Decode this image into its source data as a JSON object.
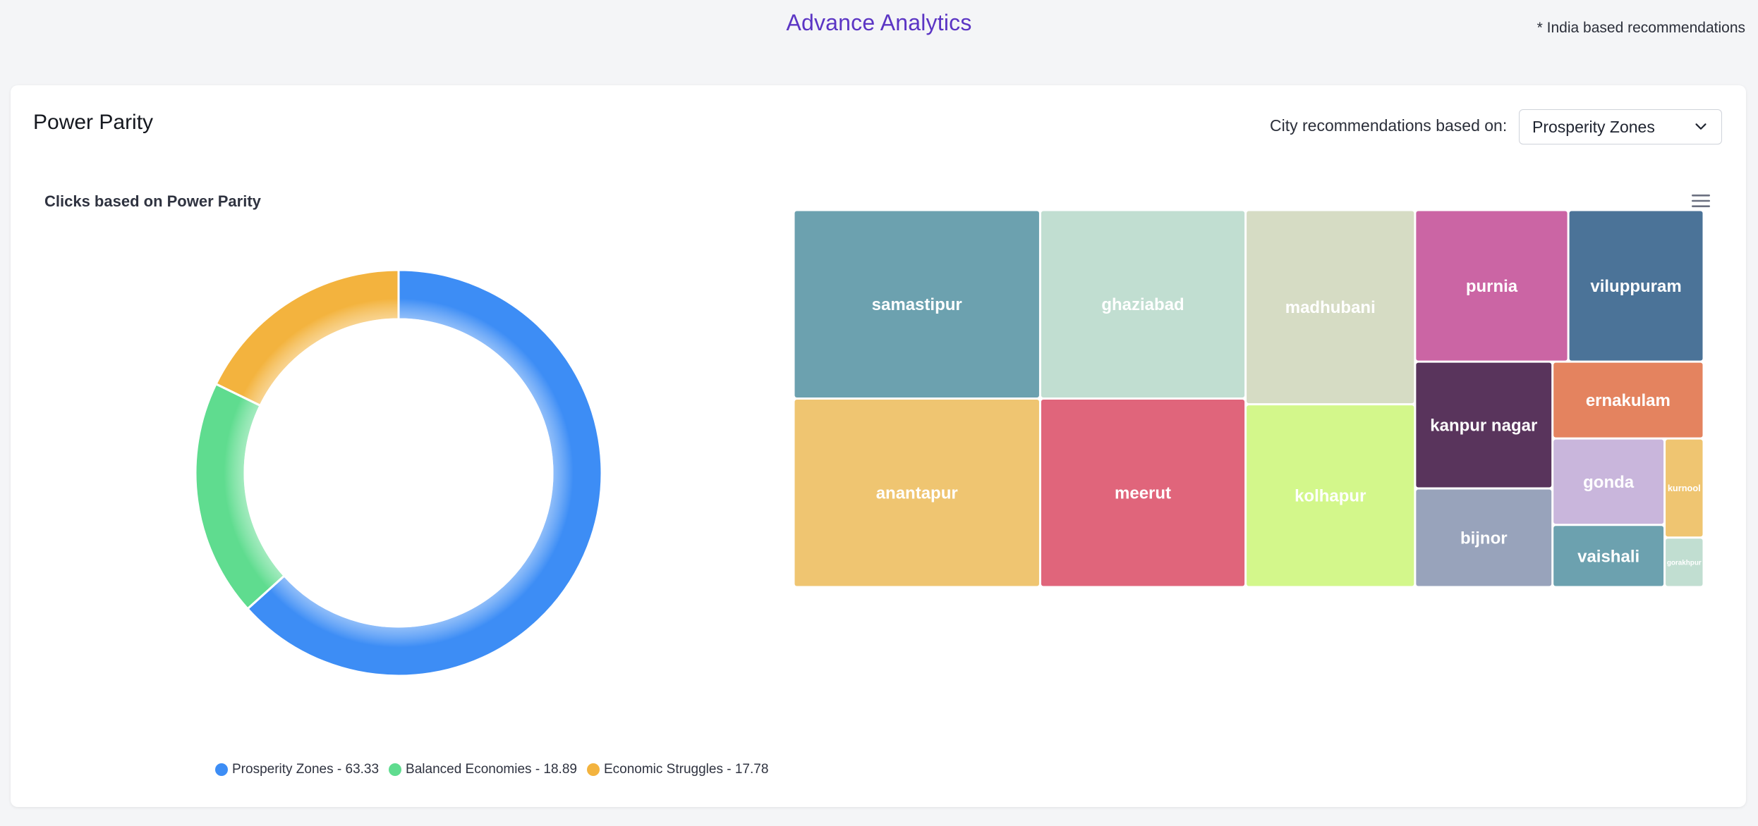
{
  "page": {
    "title": "Advance Analytics",
    "note": "* India based recommendations"
  },
  "card": {
    "title": "Power Parity",
    "recommendation_label": "City recommendations based on:",
    "recommendation_value": "Prosperity Zones"
  },
  "icons": {
    "dropdown": "chevron-down-icon",
    "menu": "hamburger-menu-icon"
  },
  "colors": {
    "accent": "#5b35c4"
  },
  "chart_data": [
    {
      "type": "pie",
      "variant": "donut",
      "title": "Clicks based on Power Parity",
      "legend_position": "bottom",
      "series": [
        {
          "name": "Prosperity Zones",
          "value": 63.33,
          "color": "#3d8df5",
          "legend_text": "Prosperity Zones - 63.33"
        },
        {
          "name": "Balanced Economies",
          "value": 18.89,
          "color": "#5fdc8f",
          "legend_text": "Balanced Economies - 18.89"
        },
        {
          "name": "Economic Struggles",
          "value": 17.78,
          "color": "#f3b33e",
          "legend_text": "Economic Struggles - 17.78"
        }
      ]
    },
    {
      "type": "treemap",
      "points": [
        {
          "name": "samastipur",
          "value": 12,
          "color": "#6ca1af"
        },
        {
          "name": "anantapur",
          "value": 12,
          "color": "#efc571"
        },
        {
          "name": "ghaziabad",
          "value": 10,
          "color": "#c1ded1"
        },
        {
          "name": "meerut",
          "value": 10,
          "color": "#e0657b"
        },
        {
          "name": "madhubani",
          "value": 8.5,
          "color": "#d6dcc4"
        },
        {
          "name": "kolhapur",
          "value": 8,
          "color": "#d3f78b"
        },
        {
          "name": "purnia",
          "value": 6,
          "color": "#cb65a4"
        },
        {
          "name": "viluppuram",
          "value": 5.3,
          "color": "#4b7398"
        },
        {
          "name": "kanpur nagar",
          "value": 4.5,
          "color": "#59345c"
        },
        {
          "name": "bijnor",
          "value": 3.5,
          "color": "#98a3bb"
        },
        {
          "name": "ernakulam",
          "value": 3,
          "color": "#e4835f"
        },
        {
          "name": "gonda",
          "value": 2.5,
          "color": "#c9b6dc"
        },
        {
          "name": "vaishali",
          "value": 1.8,
          "color": "#6ca1af"
        },
        {
          "name": "kurnool",
          "value": 1.0,
          "color": "#efc571"
        },
        {
          "name": "gorakhpur",
          "value": 0.5,
          "color": "#c1ded1"
        }
      ]
    }
  ]
}
